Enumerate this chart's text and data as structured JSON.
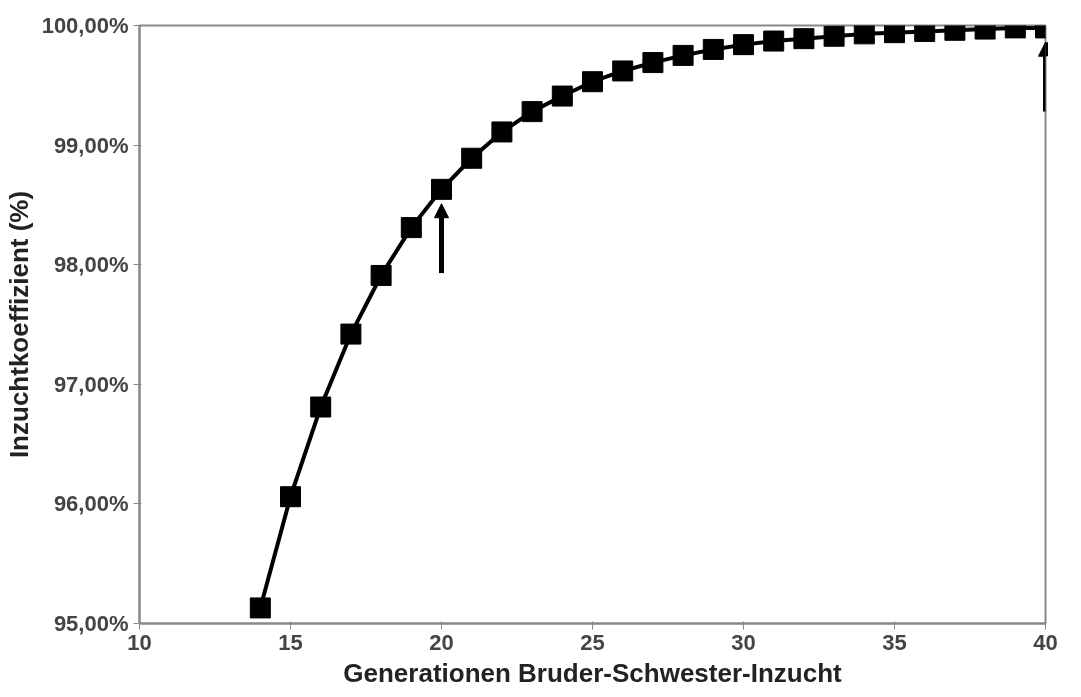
{
  "chart_data": {
    "type": "line",
    "xlabel": "Generationen Bruder-Schwester-Inzucht",
    "ylabel": "Inzuchtkoeffizient (%)",
    "x": [
      14,
      15,
      16,
      17,
      18,
      19,
      20,
      21,
      22,
      23,
      24,
      25,
      26,
      27,
      28,
      29,
      30,
      31,
      32,
      33,
      34,
      35,
      36,
      37,
      38,
      39,
      40
    ],
    "series": [
      {
        "color": "#000000",
        "values": [
          95.13,
          96.06,
          96.81,
          97.42,
          97.91,
          98.31,
          98.63,
          98.89,
          99.11,
          99.28,
          99.41,
          99.53,
          99.62,
          99.69,
          99.75,
          99.8,
          99.84,
          99.87,
          99.89,
          99.91,
          99.93,
          99.94,
          99.95,
          99.96,
          99.97,
          99.98,
          99.98
        ]
      }
    ],
    "marker": "square",
    "line_style": "solid",
    "grid": false,
    "xlim": [
      10,
      40
    ],
    "xticks": [
      10,
      15,
      20,
      25,
      30,
      35,
      40
    ],
    "ylim": [
      95,
      100
    ],
    "yticks": [
      {
        "value": 95,
        "label": "95,00%"
      },
      {
        "value": 96,
        "label": "96,00%"
      },
      {
        "value": 97,
        "label": "97,00%"
      },
      {
        "value": 98,
        "label": "98,00%"
      },
      {
        "value": 99,
        "label": "99,00%"
      },
      {
        "value": 100,
        "label": "100,00%"
      }
    ]
  }
}
